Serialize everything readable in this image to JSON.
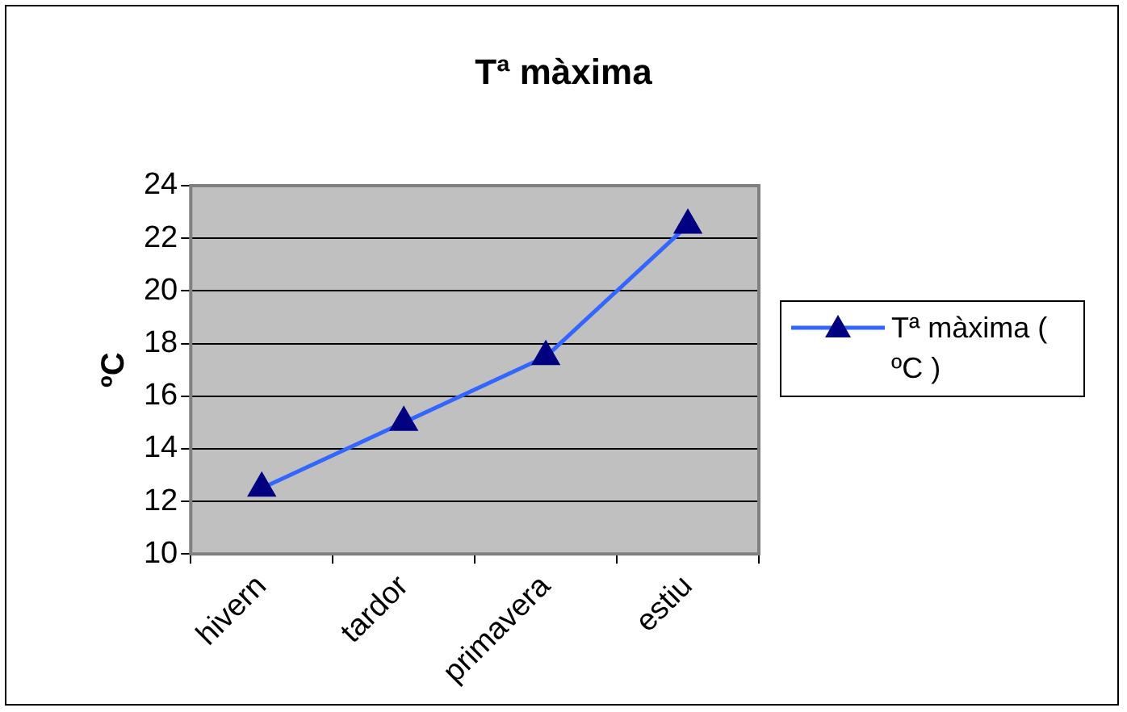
{
  "chart_data": {
    "type": "line",
    "title": "Tª màxima",
    "ylabel": "ºC",
    "categories": [
      "hivern",
      "tardor",
      "primavera",
      "estiu"
    ],
    "series": [
      {
        "name": "Tª màxima ( ºC )",
        "color": "#3366ff",
        "values": [
          12.5,
          15,
          17.5,
          22.5
        ]
      }
    ],
    "ylim": [
      10,
      24
    ],
    "yticks": [
      10,
      12,
      14,
      16,
      18,
      20,
      22,
      24
    ],
    "grid": "y",
    "legend": "right",
    "marker": "triangle"
  }
}
